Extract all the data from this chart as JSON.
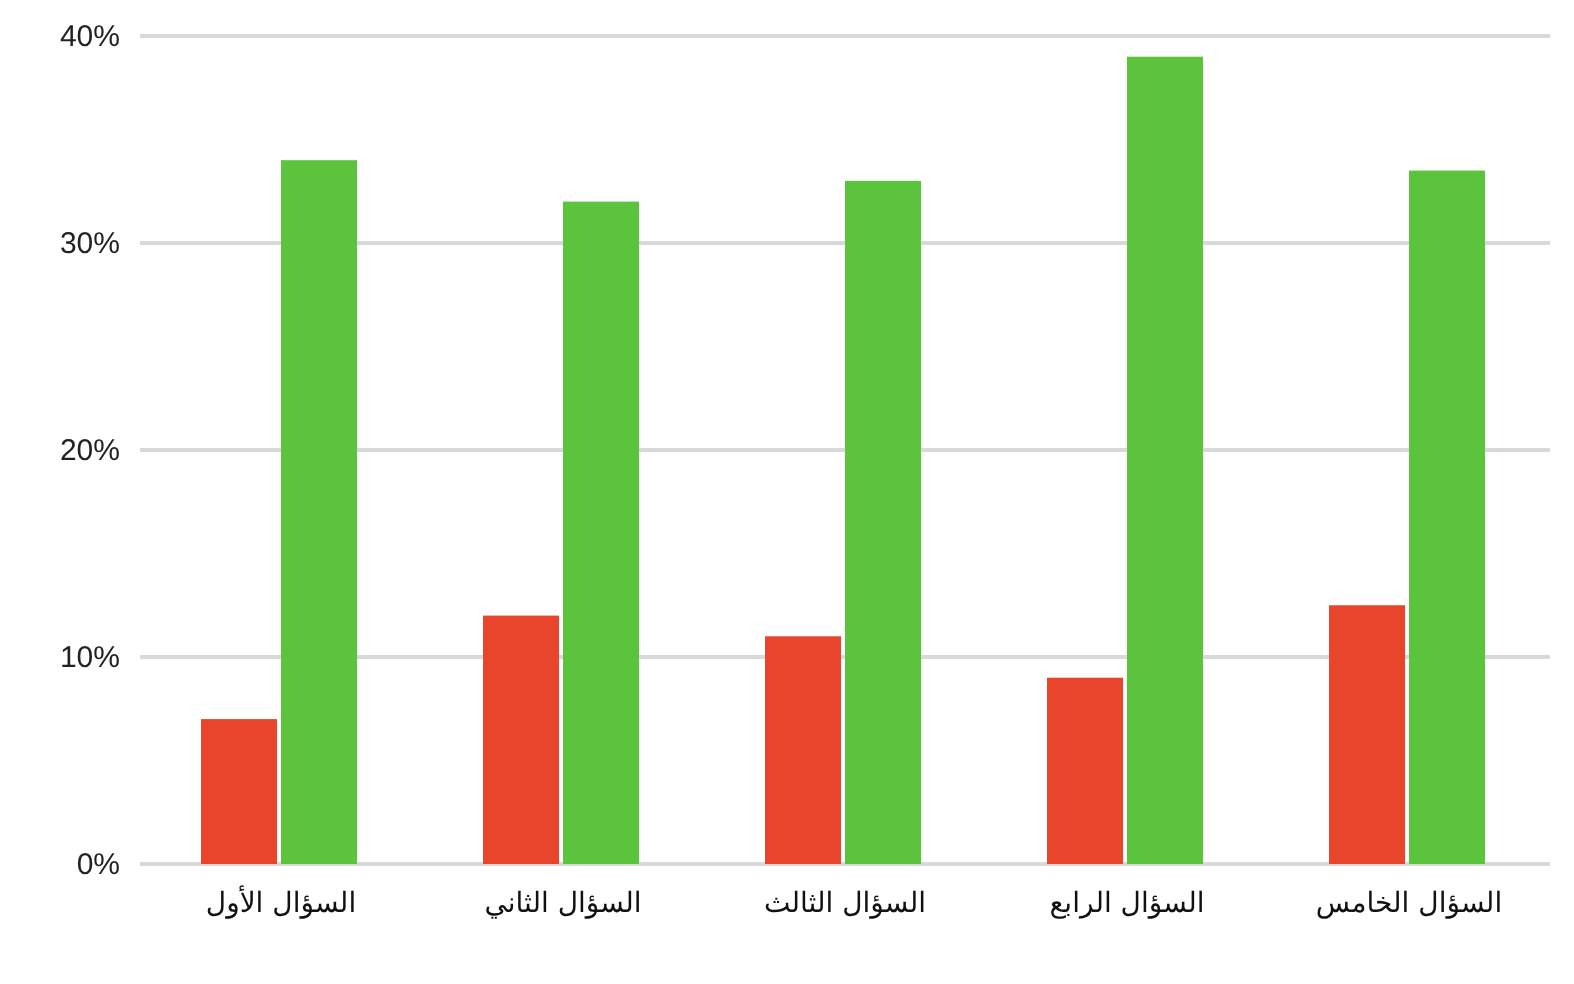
{
  "chart_data": {
    "type": "bar",
    "categories": [
      "السؤال الأول",
      "السؤال الثاني",
      "السؤال الثالث",
      "السؤال الرابع",
      "السؤال الخامس"
    ],
    "series": [
      {
        "color": "#e8452c",
        "values": [
          7,
          12,
          11,
          9,
          12.5
        ]
      },
      {
        "color": "#5cc43c",
        "values": [
          34,
          32,
          33,
          39,
          33.5
        ]
      }
    ],
    "ylim": [
      0,
      40
    ],
    "yticks": [
      {
        "value": 0,
        "label": "0%"
      },
      {
        "value": 10,
        "label": "10%"
      },
      {
        "value": 20,
        "label": "20%"
      },
      {
        "value": 30,
        "label": "30%"
      },
      {
        "value": 40,
        "label": "40%"
      }
    ],
    "grid": "y"
  }
}
